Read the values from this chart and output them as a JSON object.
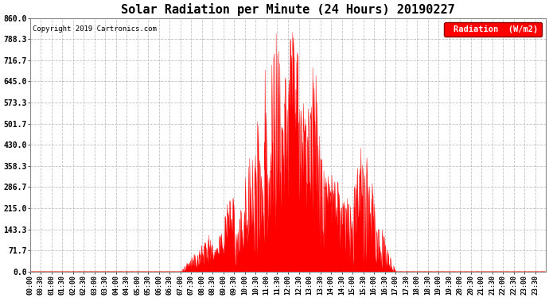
{
  "title": "Solar Radiation per Minute (24 Hours) 20190227",
  "copyright_text": "Copyright 2019 Cartronics.com",
  "legend_label": "Radiation  (W/m2)",
  "ylim": [
    0.0,
    860.0
  ],
  "yticks": [
    0.0,
    71.7,
    143.3,
    215.0,
    286.7,
    358.3,
    430.0,
    501.7,
    573.3,
    645.0,
    716.7,
    788.3,
    860.0
  ],
  "fill_color": "#ff0000",
  "line_color": "#ff0000",
  "background_color": "#ffffff",
  "grid_color": "#bbbbbb",
  "title_fontsize": 11,
  "axis_fontsize": 7,
  "total_minutes": 1440,
  "peak_value": 860.0,
  "sunrise_minute": 420,
  "sunset_minute": 1020
}
